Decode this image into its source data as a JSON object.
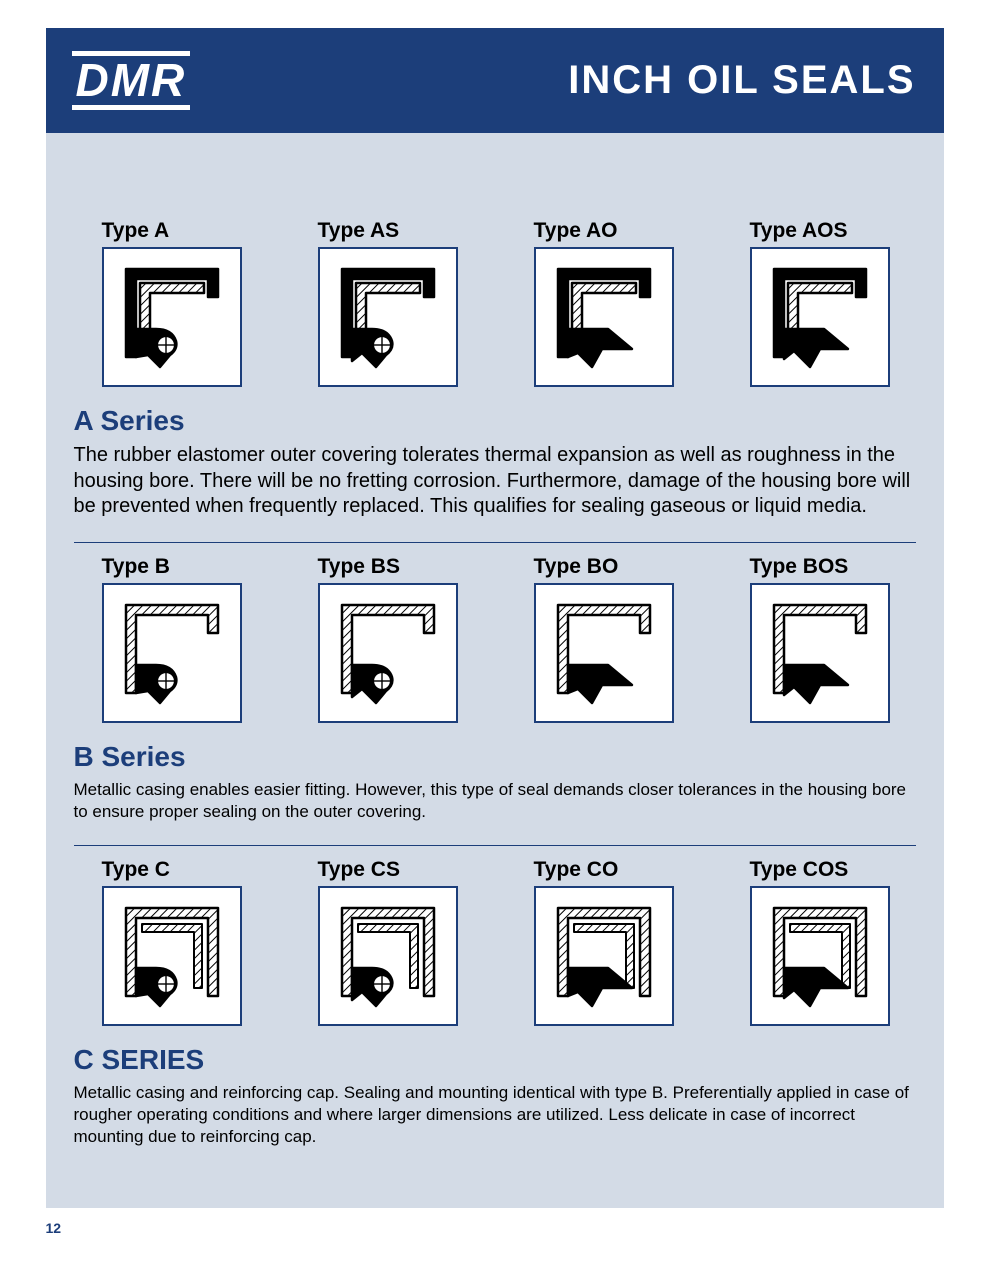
{
  "brand": "DMR",
  "header_title": "INCH OIL SEALS",
  "page_number": "12",
  "colors": {
    "header_bg": "#1c3e7a",
    "page_bg": "#d3dbe6",
    "accent": "#1c3e7a",
    "text": "#000000",
    "white": "#ffffff"
  },
  "series": [
    {
      "title": "A Series",
      "body_class": "",
      "body": "The rubber elastomer outer covering tolerates thermal expansion as well as roughness in the housing bore. There will be no fretting corrosion. Furthermore, damage of the housing bore will be prevented when frequently replaced. This qualifies for sealing gaseous or liquid media.",
      "types": [
        {
          "label": "Type A",
          "outer": "rubber",
          "spring": true,
          "dust_lip": false
        },
        {
          "label": "Type AS",
          "outer": "rubber",
          "spring": true,
          "dust_lip": true
        },
        {
          "label": "Type AO",
          "outer": "rubber",
          "spring": false,
          "dust_lip": false
        },
        {
          "label": "Type AOS",
          "outer": "rubber",
          "spring": false,
          "dust_lip": true
        }
      ]
    },
    {
      "title": "B Series",
      "body_class": "small",
      "body": "Metallic casing enables easier fitting. However, this type of seal demands closer tolerances in the housing bore to ensure proper sealing on the outer covering.",
      "types": [
        {
          "label": "Type B",
          "outer": "metal",
          "spring": true,
          "dust_lip": false
        },
        {
          "label": "Type BS",
          "outer": "metal",
          "spring": true,
          "dust_lip": true
        },
        {
          "label": "Type BO",
          "outer": "metal",
          "spring": false,
          "dust_lip": false
        },
        {
          "label": "Type BOS",
          "outer": "metal",
          "spring": false,
          "dust_lip": true
        }
      ]
    },
    {
      "title": "C SERIES",
      "body_class": "small",
      "body": "Metallic casing and reinforcing cap. Sealing and mounting identical with type B. Preferentially applied in case of rougher operating conditions and where larger dimensions are utilized. Less delicate in case of incorrect mounting due to reinforcing cap.",
      "types": [
        {
          "label": "Type C",
          "outer": "double",
          "spring": true,
          "dust_lip": false
        },
        {
          "label": "Type CS",
          "outer": "double",
          "spring": true,
          "dust_lip": true
        },
        {
          "label": "Type CO",
          "outer": "double",
          "spring": false,
          "dust_lip": false
        },
        {
          "label": "Type COS",
          "outer": "double",
          "spring": false,
          "dust_lip": true
        }
      ]
    }
  ],
  "diagram_style": {
    "stroke": "#000000",
    "fill_solid": "#000000",
    "fill_metal_hatch_spacing": 5,
    "bg": "#ffffff"
  }
}
